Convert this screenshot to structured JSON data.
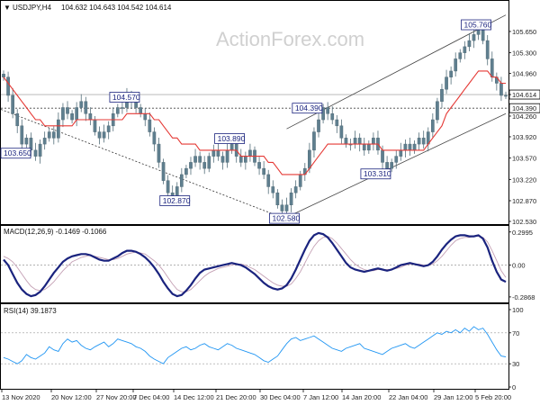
{
  "chart_data": [
    {
      "type": "candlestick",
      "title": "USDJPY,H4",
      "ohlc": "104.632 104.643 104.542 104.614",
      "watermark": "ActionForex.com",
      "ylim": [
        102.53,
        105.96
      ],
      "y_ticks": [
        "105.650",
        "105.300",
        "104.960",
        "104.614",
        "104.260",
        "103.920",
        "103.570",
        "103.220",
        "102.870",
        "102.530"
      ],
      "current_price": "104.614",
      "level_price": "104.390",
      "x_ticks": [
        "13 Nov 2020",
        "20 Nov 12:00",
        "27 Nov 20:00",
        "7 Dec 04:00",
        "14 Dec 12:00",
        "21 Dec 20:00",
        "30 Dec 04:00",
        "7 Jan 12:00",
        "14 Jan 20:00",
        "22 Jan 04:00",
        "29 Jan 12:00",
        "5 Feb 20:00"
      ],
      "annotations": [
        {
          "text": "103.650",
          "x": 0.5,
          "y": 103.65
        },
        {
          "text": "104.570",
          "x": 26.5,
          "y": 104.57
        },
        {
          "text": "102.870",
          "x": 37.5,
          "y": 102.87
        },
        {
          "text": "103.890",
          "x": 49.5,
          "y": 103.89
        },
        {
          "text": "102.580",
          "x": 61.5,
          "y": 102.58
        },
        {
          "text": "104.390",
          "x": 66.5,
          "y": 104.39
        },
        {
          "text": "103.310",
          "x": 81.5,
          "y": 103.31
        },
        {
          "text": "105.760",
          "x": 103.5,
          "y": 105.76
        }
      ],
      "price": [
        104.9,
        104.6,
        104.3,
        104.1,
        103.8,
        103.9,
        103.7,
        103.6,
        103.8,
        103.9,
        104.0,
        103.9,
        104.2,
        104.4,
        104.3,
        104.2,
        104.4,
        104.5,
        104.3,
        104.2,
        104.0,
        103.9,
        104.0,
        104.1,
        104.3,
        104.4,
        104.4,
        104.6,
        104.5,
        104.4,
        104.3,
        104.2,
        104.0,
        103.8,
        103.5,
        103.2,
        103.0,
        102.9,
        103.1,
        103.3,
        103.4,
        103.5,
        103.6,
        103.5,
        103.4,
        103.6,
        103.7,
        103.6,
        103.5,
        103.7,
        103.8,
        103.6,
        103.5,
        103.6,
        103.7,
        103.5,
        103.4,
        103.3,
        103.1,
        103.0,
        102.8,
        102.7,
        102.8,
        103.0,
        103.1,
        103.3,
        103.4,
        103.7,
        104.0,
        104.2,
        104.4,
        104.3,
        104.2,
        104.1,
        103.9,
        103.8,
        103.8,
        103.9,
        103.8,
        103.7,
        103.8,
        103.9,
        103.7,
        103.5,
        103.4,
        103.5,
        103.6,
        103.7,
        103.8,
        103.7,
        103.8,
        103.9,
        103.8,
        104.0,
        104.2,
        104.5,
        104.7,
        104.9,
        105.0,
        105.2,
        105.3,
        105.4,
        105.5,
        105.6,
        105.7,
        105.5,
        105.2,
        104.9,
        104.8,
        104.6,
        104.6
      ],
      "series": [
        {
          "values": [
            104.9,
            104.8,
            104.7,
            104.6,
            104.5,
            104.4,
            104.3,
            104.2,
            104.2,
            104.1,
            104.1,
            104.1,
            104.1,
            104.1,
            104.1,
            104.1,
            104.2,
            104.2,
            104.2,
            104.2,
            104.2,
            104.2,
            104.2,
            104.2,
            104.2,
            104.2,
            104.2,
            104.3,
            104.3,
            104.3,
            104.3,
            104.3,
            104.3,
            104.2,
            104.2,
            104.1,
            104.0,
            103.9,
            103.9,
            103.8,
            103.8,
            103.8,
            103.8,
            103.7,
            103.7,
            103.7,
            103.7,
            103.7,
            103.7,
            103.7,
            103.7,
            103.7,
            103.6,
            103.6,
            103.6,
            103.6,
            103.6,
            103.6,
            103.5,
            103.5,
            103.4,
            103.3,
            103.3,
            103.3,
            103.3,
            103.3,
            103.3,
            103.4,
            103.5,
            103.6,
            103.7,
            103.8,
            103.8,
            103.8,
            103.8,
            103.8,
            103.8,
            103.8,
            103.8,
            103.8,
            103.8,
            103.8,
            103.8,
            103.7,
            103.7,
            103.7,
            103.7,
            103.7,
            103.7,
            103.7,
            103.7,
            103.7,
            103.7,
            103.8,
            103.9,
            104.0,
            104.1,
            104.3,
            104.4,
            104.5,
            104.6,
            104.7,
            104.8,
            104.9,
            105.0,
            105.0,
            105.0,
            104.9,
            104.9,
            104.8,
            104.8
          ]
        }
      ],
      "x_count": 111
    },
    {
      "type": "line",
      "title": "MACD(12,26,9) -0.1469 -0.1066",
      "ylim": [
        -0.32,
        0.33
      ],
      "y_ticks": [
        "0.2995",
        "0.00",
        "-0.2868"
      ],
      "series": [
        {
          "values": [
            0.05,
            0.0,
            -0.08,
            -0.16,
            -0.22,
            -0.26,
            -0.28,
            -0.27,
            -0.24,
            -0.19,
            -0.13,
            -0.07,
            -0.02,
            0.03,
            0.06,
            0.08,
            0.09,
            0.1,
            0.1,
            0.09,
            0.07,
            0.05,
            0.04,
            0.04,
            0.06,
            0.08,
            0.11,
            0.13,
            0.13,
            0.12,
            0.1,
            0.07,
            0.03,
            -0.02,
            -0.08,
            -0.15,
            -0.21,
            -0.26,
            -0.28,
            -0.27,
            -0.23,
            -0.18,
            -0.12,
            -0.07,
            -0.04,
            -0.03,
            -0.02,
            -0.01,
            0.0,
            0.01,
            0.02,
            0.01,
            0.0,
            -0.02,
            -0.05,
            -0.08,
            -0.12,
            -0.16,
            -0.19,
            -0.21,
            -0.22,
            -0.21,
            -0.18,
            -0.12,
            -0.04,
            0.05,
            0.14,
            0.22,
            0.27,
            0.29,
            0.28,
            0.25,
            0.2,
            0.14,
            0.08,
            0.02,
            -0.02,
            -0.04,
            -0.05,
            -0.06,
            -0.05,
            -0.04,
            -0.03,
            -0.04,
            -0.05,
            -0.04,
            -0.02,
            0.0,
            0.01,
            0.02,
            0.01,
            0.0,
            -0.01,
            0.0,
            0.03,
            0.08,
            0.14,
            0.19,
            0.23,
            0.26,
            0.27,
            0.27,
            0.26,
            0.26,
            0.27,
            0.24,
            0.16,
            0.04,
            -0.06,
            -0.13,
            -0.15
          ]
        },
        {
          "values": [
            0.08,
            0.06,
            0.03,
            -0.02,
            -0.08,
            -0.14,
            -0.19,
            -0.22,
            -0.23,
            -0.22,
            -0.19,
            -0.15,
            -0.1,
            -0.05,
            -0.01,
            0.03,
            0.05,
            0.07,
            0.08,
            0.09,
            0.08,
            0.07,
            0.06,
            0.05,
            0.05,
            0.06,
            0.08,
            0.1,
            0.11,
            0.12,
            0.11,
            0.1,
            0.07,
            0.04,
            0.0,
            -0.05,
            -0.11,
            -0.17,
            -0.22,
            -0.24,
            -0.24,
            -0.22,
            -0.18,
            -0.14,
            -0.1,
            -0.07,
            -0.05,
            -0.03,
            -0.02,
            -0.01,
            0.0,
            0.01,
            0.01,
            0.0,
            -0.02,
            -0.04,
            -0.07,
            -0.1,
            -0.13,
            -0.16,
            -0.18,
            -0.19,
            -0.19,
            -0.17,
            -0.12,
            -0.06,
            0.02,
            0.1,
            0.17,
            0.22,
            0.25,
            0.26,
            0.24,
            0.2,
            0.15,
            0.1,
            0.05,
            0.01,
            -0.02,
            -0.04,
            -0.05,
            -0.05,
            -0.04,
            -0.04,
            -0.04,
            -0.04,
            -0.03,
            -0.02,
            0.0,
            0.01,
            0.01,
            0.01,
            0.0,
            0.0,
            0.01,
            0.04,
            0.08,
            0.13,
            0.18,
            0.22,
            0.24,
            0.25,
            0.25,
            0.26,
            0.26,
            0.25,
            0.21,
            0.13,
            0.04,
            -0.05,
            -0.11
          ]
        }
      ],
      "x_count": 111
    },
    {
      "type": "line",
      "title": "RSI(14) 39.1873",
      "ylim": [
        0,
        100
      ],
      "y_ticks": [
        "100",
        "70",
        "30",
        "0"
      ],
      "series": [
        {
          "values": [
            38,
            36,
            33,
            30,
            34,
            42,
            38,
            36,
            40,
            44,
            52,
            48,
            46,
            56,
            62,
            58,
            60,
            54,
            50,
            48,
            52,
            55,
            58,
            52,
            56,
            62,
            60,
            58,
            56,
            52,
            50,
            46,
            40,
            36,
            33,
            30,
            38,
            42,
            46,
            50,
            52,
            48,
            50,
            54,
            56,
            52,
            50,
            48,
            52,
            56,
            54,
            50,
            48,
            46,
            44,
            42,
            38,
            34,
            32,
            36,
            40,
            48,
            56,
            62,
            64,
            60,
            62,
            64,
            66,
            62,
            58,
            54,
            50,
            48,
            46,
            50,
            52,
            54,
            56,
            50,
            48,
            46,
            44,
            42,
            46,
            50,
            52,
            54,
            56,
            52,
            50,
            54,
            58,
            62,
            66,
            70,
            68,
            72,
            70,
            74,
            70,
            76,
            72,
            78,
            74,
            76,
            68,
            58,
            48,
            40,
            39
          ]
        }
      ],
      "x_count": 111
    }
  ]
}
